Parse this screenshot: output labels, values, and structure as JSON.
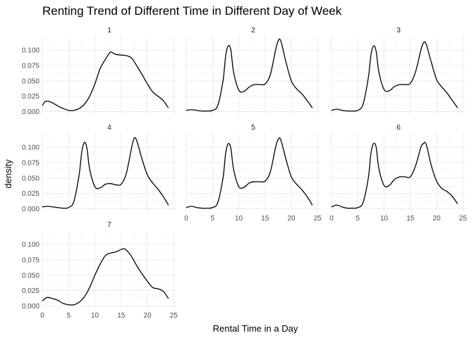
{
  "chart_data": {
    "type": "line",
    "title": "Renting Trend of Different Time in Different Day of Week",
    "xlabel": "Rental Time in a Day",
    "ylabel": "density",
    "xlim": [
      0,
      24
    ],
    "ylim": [
      0,
      0.12
    ],
    "x_ticks": [
      "0",
      "5",
      "10",
      "15",
      "20",
      "25"
    ],
    "y_ticks": [
      "0.000",
      "0.025",
      "0.050",
      "0.075",
      "0.100"
    ],
    "grid": true,
    "legend": "none",
    "panels": [
      {
        "strip": "1",
        "points": [
          [
            0,
            0.01
          ],
          [
            0.5,
            0.016
          ],
          [
            1,
            0.017
          ],
          [
            2,
            0.014
          ],
          [
            3,
            0.009
          ],
          [
            4,
            0.005
          ],
          [
            5,
            0.002
          ],
          [
            6,
            0.002
          ],
          [
            7,
            0.005
          ],
          [
            8,
            0.012
          ],
          [
            9,
            0.025
          ],
          [
            10,
            0.045
          ],
          [
            11,
            0.07
          ],
          [
            12,
            0.085
          ],
          [
            12.5,
            0.092
          ],
          [
            13,
            0.097
          ],
          [
            13.5,
            0.095
          ],
          [
            14,
            0.093
          ],
          [
            15,
            0.092
          ],
          [
            16,
            0.091
          ],
          [
            17,
            0.087
          ],
          [
            18,
            0.074
          ],
          [
            19,
            0.06
          ],
          [
            20,
            0.045
          ],
          [
            21,
            0.032
          ],
          [
            22,
            0.025
          ],
          [
            23,
            0.018
          ],
          [
            24,
            0.006
          ]
        ]
      },
      {
        "strip": "2",
        "points": [
          [
            0,
            0.002
          ],
          [
            1,
            0.003
          ],
          [
            2,
            0.002
          ],
          [
            3,
            0.001
          ],
          [
            4,
            0.001
          ],
          [
            5,
            0.002
          ],
          [
            6,
            0.01
          ],
          [
            7,
            0.05
          ],
          [
            7.5,
            0.09
          ],
          [
            8,
            0.107
          ],
          [
            8.5,
            0.1
          ],
          [
            9,
            0.065
          ],
          [
            10,
            0.035
          ],
          [
            11,
            0.033
          ],
          [
            12,
            0.04
          ],
          [
            13,
            0.044
          ],
          [
            14,
            0.044
          ],
          [
            15,
            0.045
          ],
          [
            16,
            0.06
          ],
          [
            17,
            0.1
          ],
          [
            17.5,
            0.115
          ],
          [
            18,
            0.115
          ],
          [
            19,
            0.08
          ],
          [
            20,
            0.05
          ],
          [
            21,
            0.037
          ],
          [
            22,
            0.029
          ],
          [
            23,
            0.018
          ],
          [
            24,
            0.006
          ]
        ]
      },
      {
        "strip": "3",
        "points": [
          [
            0,
            0.002
          ],
          [
            1,
            0.004
          ],
          [
            2,
            0.002
          ],
          [
            3,
            0.001
          ],
          [
            4,
            0.001
          ],
          [
            5,
            0.002
          ],
          [
            6,
            0.012
          ],
          [
            7,
            0.055
          ],
          [
            7.5,
            0.092
          ],
          [
            8,
            0.107
          ],
          [
            8.5,
            0.098
          ],
          [
            9,
            0.065
          ],
          [
            10,
            0.036
          ],
          [
            11,
            0.034
          ],
          [
            12,
            0.041
          ],
          [
            13,
            0.044
          ],
          [
            14,
            0.044
          ],
          [
            15,
            0.046
          ],
          [
            16,
            0.065
          ],
          [
            17,
            0.1
          ],
          [
            17.5,
            0.112
          ],
          [
            18,
            0.11
          ],
          [
            19,
            0.08
          ],
          [
            20,
            0.052
          ],
          [
            21,
            0.04
          ],
          [
            22,
            0.03
          ],
          [
            23,
            0.018
          ],
          [
            24,
            0.006
          ]
        ]
      },
      {
        "strip": "4",
        "points": [
          [
            0,
            0.003
          ],
          [
            1,
            0.004
          ],
          [
            2,
            0.003
          ],
          [
            3,
            0.002
          ],
          [
            4,
            0.001
          ],
          [
            5,
            0.002
          ],
          [
            6,
            0.012
          ],
          [
            7,
            0.055
          ],
          [
            7.5,
            0.092
          ],
          [
            8,
            0.108
          ],
          [
            8.5,
            0.098
          ],
          [
            9,
            0.065
          ],
          [
            10,
            0.036
          ],
          [
            11,
            0.034
          ],
          [
            12,
            0.04
          ],
          [
            13,
            0.041
          ],
          [
            14,
            0.039
          ],
          [
            15,
            0.04
          ],
          [
            16,
            0.058
          ],
          [
            17,
            0.1
          ],
          [
            17.5,
            0.115
          ],
          [
            18,
            0.11
          ],
          [
            19,
            0.08
          ],
          [
            20,
            0.055
          ],
          [
            21,
            0.042
          ],
          [
            22,
            0.032
          ],
          [
            23,
            0.02
          ],
          [
            24,
            0.006
          ]
        ]
      },
      {
        "strip": "5",
        "points": [
          [
            0,
            0.002
          ],
          [
            1,
            0.004
          ],
          [
            2,
            0.002
          ],
          [
            3,
            0.001
          ],
          [
            4,
            0.001
          ],
          [
            5,
            0.002
          ],
          [
            6,
            0.01
          ],
          [
            7,
            0.05
          ],
          [
            7.5,
            0.09
          ],
          [
            8,
            0.106
          ],
          [
            8.5,
            0.098
          ],
          [
            9,
            0.065
          ],
          [
            10,
            0.036
          ],
          [
            11,
            0.035
          ],
          [
            12,
            0.042
          ],
          [
            13,
            0.044
          ],
          [
            14,
            0.044
          ],
          [
            15,
            0.045
          ],
          [
            16,
            0.06
          ],
          [
            17,
            0.1
          ],
          [
            17.5,
            0.113
          ],
          [
            18,
            0.112
          ],
          [
            19,
            0.08
          ],
          [
            20,
            0.052
          ],
          [
            21,
            0.04
          ],
          [
            22,
            0.031
          ],
          [
            23,
            0.02
          ],
          [
            24,
            0.006
          ]
        ]
      },
      {
        "strip": "6",
        "points": [
          [
            0,
            0.003
          ],
          [
            1,
            0.006
          ],
          [
            2,
            0.003
          ],
          [
            3,
            0.001
          ],
          [
            4,
            0.001
          ],
          [
            5,
            0.002
          ],
          [
            6,
            0.01
          ],
          [
            7,
            0.05
          ],
          [
            7.5,
            0.09
          ],
          [
            8,
            0.106
          ],
          [
            8.5,
            0.1
          ],
          [
            9,
            0.066
          ],
          [
            10,
            0.038
          ],
          [
            11,
            0.038
          ],
          [
            12,
            0.048
          ],
          [
            13,
            0.052
          ],
          [
            14,
            0.052
          ],
          [
            15,
            0.052
          ],
          [
            16,
            0.07
          ],
          [
            17,
            0.1
          ],
          [
            17.5,
            0.106
          ],
          [
            18,
            0.105
          ],
          [
            19,
            0.07
          ],
          [
            20,
            0.045
          ],
          [
            21,
            0.033
          ],
          [
            22,
            0.028
          ],
          [
            23,
            0.02
          ],
          [
            24,
            0.008
          ]
        ]
      },
      {
        "strip": "7",
        "points": [
          [
            0,
            0.008
          ],
          [
            0.5,
            0.012
          ],
          [
            1,
            0.014
          ],
          [
            2,
            0.012
          ],
          [
            3,
            0.009
          ],
          [
            4,
            0.004
          ],
          [
            5,
            0.002
          ],
          [
            6,
            0.002
          ],
          [
            7,
            0.006
          ],
          [
            8,
            0.015
          ],
          [
            9,
            0.03
          ],
          [
            10,
            0.05
          ],
          [
            11,
            0.068
          ],
          [
            12,
            0.082
          ],
          [
            13,
            0.086
          ],
          [
            14,
            0.088
          ],
          [
            15,
            0.092
          ],
          [
            15.5,
            0.093
          ],
          [
            16,
            0.091
          ],
          [
            17,
            0.08
          ],
          [
            18,
            0.065
          ],
          [
            19,
            0.052
          ],
          [
            20,
            0.04
          ],
          [
            21,
            0.03
          ],
          [
            22,
            0.028
          ],
          [
            23,
            0.024
          ],
          [
            24,
            0.012
          ]
        ]
      }
    ]
  }
}
